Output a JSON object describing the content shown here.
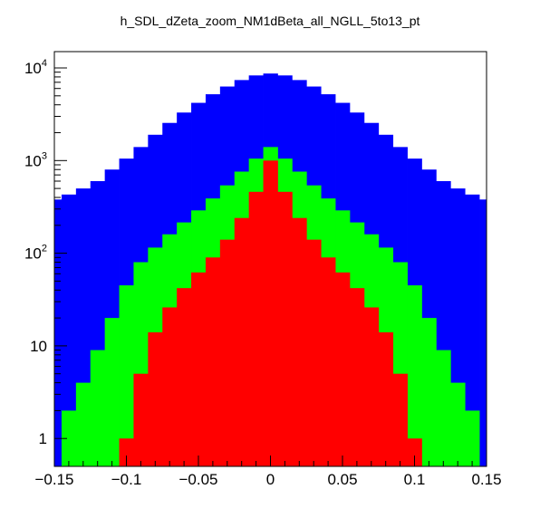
{
  "chart_data": {
    "type": "histogram",
    "title": "h_SDL_dZeta_zoom_NM1dBeta_all_NGLL_5to13_pt",
    "xlabel": "",
    "ylabel": "",
    "xlim": [
      -0.15,
      0.15
    ],
    "ylim": [
      0.5,
      15000
    ],
    "y_scale": "log",
    "grid": false,
    "legend": "none",
    "x_ticks": [
      {
        "value": -0.15,
        "label": "−0.15"
      },
      {
        "value": -0.1,
        "label": "−0.1"
      },
      {
        "value": -0.05,
        "label": "−0.05"
      },
      {
        "value": 0,
        "label": "0"
      },
      {
        "value": 0.05,
        "label": "0.05"
      },
      {
        "value": 0.1,
        "label": "0.1"
      },
      {
        "value": 0.15,
        "label": "0.15"
      }
    ],
    "y_ticks": [
      {
        "value": 1,
        "base": "1",
        "exp": ""
      },
      {
        "value": 10,
        "base": "10",
        "exp": ""
      },
      {
        "value": 100,
        "base": "10",
        "exp": "2"
      },
      {
        "value": 1000,
        "base": "10",
        "exp": "3"
      },
      {
        "value": 10000,
        "base": "10",
        "exp": "4"
      }
    ],
    "x": [
      -0.15,
      -0.14,
      -0.13,
      -0.12,
      -0.11,
      -0.1,
      -0.09,
      -0.08,
      -0.07,
      -0.06,
      -0.05,
      -0.04,
      -0.03,
      -0.02,
      -0.01,
      0,
      0.01,
      0.02,
      0.03,
      0.04,
      0.05,
      0.06,
      0.07,
      0.08,
      0.09,
      0.1,
      0.11,
      0.12,
      0.13,
      0.14,
      0.15
    ],
    "series": [
      {
        "color": "#0000ff",
        "values": [
          380,
          430,
          500,
          600,
          800,
          1050,
          1400,
          1900,
          2550,
          3300,
          4200,
          5200,
          6300,
          7400,
          8300,
          8700,
          8300,
          7400,
          6300,
          5200,
          4200,
          3300,
          2550,
          1900,
          1400,
          1050,
          800,
          600,
          500,
          430,
          380
        ]
      },
      {
        "color": "#00ff00",
        "values": [
          0.5,
          2,
          4,
          9,
          20,
          45,
          80,
          115,
          160,
          215,
          290,
          390,
          540,
          760,
          1050,
          1400,
          1050,
          760,
          540,
          390,
          290,
          215,
          160,
          115,
          80,
          45,
          20,
          9,
          4,
          2,
          0.5
        ]
      },
      {
        "color": "#ff0000",
        "values": [
          0.5,
          0.5,
          0.5,
          0.5,
          0.5,
          1,
          5,
          14,
          26,
          42,
          62,
          90,
          140,
          240,
          460,
          1000,
          460,
          240,
          140,
          90,
          62,
          42,
          26,
          14,
          5,
          1,
          0.5,
          0.5,
          0.5,
          0.5,
          0.5
        ]
      }
    ]
  }
}
